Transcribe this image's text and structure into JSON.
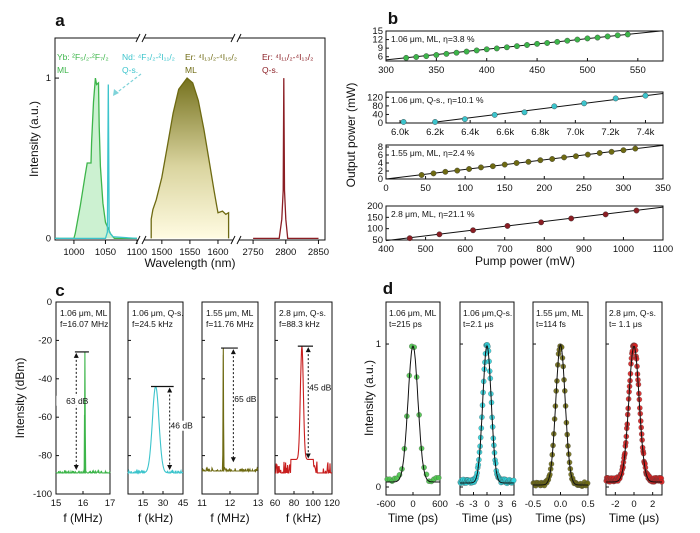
{
  "chart_data": [
    {
      "panel": "a",
      "type": "line",
      "xlabel": "Wavelength (nm)",
      "ylabel": "Intensity (a.u.)",
      "ylim": [
        -0.01,
        1.25
      ],
      "yticks": [
        0,
        1
      ],
      "ytick_labels": [
        "0",
        "1"
      ],
      "segments": [
        {
          "xlim": [
            970,
            1100
          ],
          "xticks": [
            1000,
            1050,
            1100
          ],
          "xtick_labels": [
            "1000",
            "1050",
            "1100"
          ]
        },
        {
          "xlim": [
            1470,
            1625
          ],
          "xticks": [
            1500,
            1550,
            1600
          ],
          "xtick_labels": [
            "1500",
            "1550",
            "1600"
          ]
        },
        {
          "xlim": [
            2730,
            2860
          ],
          "xticks": [
            2750,
            2800,
            2850
          ],
          "xtick_labels": [
            "2750",
            "2800",
            "2850"
          ]
        }
      ],
      "series": [
        {
          "name": "Yb: ²F₅/₂-²F₇/₂",
          "mode": "ML",
          "color": "#3db54a",
          "fill": "#c9f0cf",
          "segment": 0,
          "points": [
            [
              970,
              0
            ],
            [
              1000,
              0
            ],
            [
              1002,
              0.03
            ],
            [
              1010,
              0.2
            ],
            [
              1018,
              0.4
            ],
            [
              1021,
              0.47
            ],
            [
              1027,
              0.47
            ],
            [
              1028,
              0.6
            ],
            [
              1031,
              0.85
            ],
            [
              1034,
              1.0
            ],
            [
              1036,
              0.96
            ],
            [
              1039,
              0.97
            ],
            [
              1040,
              0.7
            ],
            [
              1042,
              0.45
            ],
            [
              1046,
              0.22
            ],
            [
              1050,
              0.1
            ],
            [
              1058,
              0.03
            ],
            [
              1064,
              0
            ],
            [
              1100,
              0
            ]
          ]
        },
        {
          "name": "Nd: ⁴F₃/₂-²I₁₁/₂",
          "mode": "Q-s.",
          "color": "#3cc4cc",
          "fill": "none",
          "segment": 0,
          "points": [
            [
              970,
              0
            ],
            [
              1050,
              0
            ],
            [
              1053,
              0.04
            ],
            [
              1054.5,
              0.96
            ],
            [
              1056,
              0.04
            ],
            [
              1062,
              0.01
            ],
            [
              1100,
              0
            ]
          ]
        },
        {
          "name": "Er: ⁴I₁₃/₂-⁴I₁₅/₂",
          "mode": "ML",
          "color": "#6e6a12",
          "fill": "gradient",
          "segment": 1,
          "points": [
            [
              1481,
              0
            ],
            [
              1481,
              0.12
            ],
            [
              1484,
              0.18
            ],
            [
              1490,
              0.24
            ],
            [
              1500,
              0.38
            ],
            [
              1510,
              0.58
            ],
            [
              1520,
              0.78
            ],
            [
              1530,
              0.93
            ],
            [
              1545,
              1.0
            ],
            [
              1555,
              0.97
            ],
            [
              1565,
              0.86
            ],
            [
              1575,
              0.68
            ],
            [
              1585,
              0.47
            ],
            [
              1593,
              0.3
            ],
            [
              1598,
              0.2
            ],
            [
              1600,
              0.16
            ],
            [
              1608,
              0.17
            ],
            [
              1614,
              0.15
            ],
            [
              1619,
              0.16
            ],
            [
              1619,
              0
            ]
          ]
        },
        {
          "name": "Er: ⁴I₁₁/₂-⁴I₁₃/₂",
          "mode": "Q-s.",
          "color": "#8b1e24",
          "fill": "none",
          "segment": 2,
          "points": [
            [
              2750,
              0
            ],
            [
              2790,
              0
            ],
            [
              2794,
              0.12
            ],
            [
              2796,
              0.3
            ],
            [
              2797,
              1.0
            ],
            [
              2798,
              0.3
            ],
            [
              2800,
              0.12
            ],
            [
              2803,
              0
            ],
            [
              2850,
              0
            ]
          ]
        }
      ]
    },
    {
      "panel": "b",
      "type": "scatter",
      "xlabel": "Pump power (mW)",
      "ylabel": "Output power (mW)",
      "subplots": [
        {
          "label": "1.06 μm, ML, η=3.8 %",
          "color": "#3db54a",
          "xlim": [
            300,
            575
          ],
          "ylim": [
            4.5,
            15
          ],
          "xticks": [
            300,
            350,
            400,
            450,
            500,
            550
          ],
          "xtick_labels": [
            "300",
            "350",
            "400",
            "450",
            "500",
            "550"
          ],
          "yticks": [
            6,
            9,
            12,
            15
          ],
          "ytick_labels": [
            "6",
            "9",
            "12",
            "15"
          ],
          "points": [
            [
              320,
              5.6
            ],
            [
              330,
              5.9
            ],
            [
              340,
              6.2
            ],
            [
              350,
              6.6
            ],
            [
              360,
              7.0
            ],
            [
              370,
              7.4
            ],
            [
              380,
              7.8
            ],
            [
              390,
              8.2
            ],
            [
              400,
              8.6
            ],
            [
              410,
              8.9
            ],
            [
              420,
              9.3
            ],
            [
              430,
              9.7
            ],
            [
              440,
              10.1
            ],
            [
              450,
              10.5
            ],
            [
              460,
              10.8
            ],
            [
              470,
              11.2
            ],
            [
              480,
              11.6
            ],
            [
              490,
              12.0
            ],
            [
              500,
              12.4
            ],
            [
              510,
              12.7
            ],
            [
              520,
              13.1
            ],
            [
              530,
              13.5
            ],
            [
              540,
              13.8
            ]
          ],
          "fit": [
            [
              300,
              4.9
            ],
            [
              575,
              15.1
            ]
          ]
        },
        {
          "label": "1.06 μm, Q-s., η=10.1 %",
          "color": "#3cc4cc",
          "xlim": [
            5920,
            7500
          ],
          "ylim": [
            0,
            145
          ],
          "xticks": [
            6000,
            6200,
            6400,
            6600,
            6800,
            7000,
            7200,
            7400
          ],
          "xtick_labels": [
            "6.0k",
            "6.2k",
            "6.4k",
            "6.6k",
            "6.8k",
            "7.0k",
            "7.2k",
            "7.4k"
          ],
          "yticks": [
            0,
            40,
            80,
            120
          ],
          "ytick_labels": [
            "0",
            "40",
            "80",
            "120"
          ],
          "points": [
            [
              6020,
              5
            ],
            [
              6200,
              5
            ],
            [
              6370,
              18
            ],
            [
              6540,
              38
            ],
            [
              6710,
              50
            ],
            [
              6880,
              78
            ],
            [
              7050,
              92
            ],
            [
              7230,
              115
            ],
            [
              7400,
              128
            ]
          ],
          "fit": [
            [
              6200,
              4
            ],
            [
              7500,
              138
            ]
          ]
        },
        {
          "label": "1.55 μm, ML, η=2.4 %",
          "color": "#6e6a12",
          "xlim": [
            0,
            350
          ],
          "ylim": [
            0,
            8.5
          ],
          "xticks": [
            0,
            50,
            100,
            150,
            200,
            250,
            300,
            350
          ],
          "xtick_labels": [
            "0",
            "50",
            "100",
            "150",
            "200",
            "250",
            "300",
            "350"
          ],
          "yticks": [
            0,
            2,
            4,
            6,
            8
          ],
          "ytick_labels": [
            "0",
            "2",
            "4",
            "6",
            "8"
          ],
          "points": [
            [
              45,
              1.0
            ],
            [
              60,
              1.4
            ],
            [
              75,
              1.8
            ],
            [
              90,
              2.1
            ],
            [
              105,
              2.5
            ],
            [
              120,
              2.9
            ],
            [
              135,
              3.2
            ],
            [
              150,
              3.6
            ],
            [
              165,
              4.0
            ],
            [
              180,
              4.3
            ],
            [
              195,
              4.7
            ],
            [
              210,
              5.0
            ],
            [
              225,
              5.4
            ],
            [
              240,
              5.7
            ],
            [
              255,
              6.1
            ],
            [
              270,
              6.5
            ],
            [
              285,
              6.8
            ],
            [
              300,
              7.2
            ],
            [
              315,
              7.6
            ]
          ],
          "fit": [
            [
              0,
              0
            ],
            [
              350,
              8.4
            ]
          ]
        },
        {
          "label": "2.8 μm, ML, η=21.1 %",
          "color": "#8b1e24",
          "xlim": [
            400,
            1100
          ],
          "ylim": [
            50,
            200
          ],
          "xticks": [
            400,
            500,
            600,
            700,
            800,
            900,
            1000,
            1100
          ],
          "xtick_labels": [
            "400",
            "500",
            "600",
            "700",
            "800",
            "900",
            "1000",
            "1100"
          ],
          "yticks": [
            50,
            100,
            150,
            200
          ],
          "ytick_labels": [
            "50",
            "100",
            "150",
            "200"
          ],
          "points": [
            [
              460,
              58
            ],
            [
              535,
              75
            ],
            [
              620,
              93
            ],
            [
              707,
              112
            ],
            [
              792,
              128
            ],
            [
              868,
              145
            ],
            [
              955,
              163
            ],
            [
              1033,
              180
            ]
          ],
          "fit": [
            [
              400,
              47
            ],
            [
              1100,
              195
            ]
          ]
        }
      ]
    },
    {
      "panel": "c",
      "type": "line",
      "ylabel": "Intensity (dBm)",
      "ylim": [
        -100,
        0
      ],
      "yticks": [
        0,
        -20,
        -40,
        -60,
        -80,
        -100
      ],
      "ytick_labels": [
        "0",
        "-20",
        "-40",
        "-60",
        "-80",
        "-100"
      ],
      "subplots": [
        {
          "label": [
            "1.06 μm, ML",
            "f=16.07 MHz"
          ],
          "color": "#3db54a",
          "xlim": [
            15,
            17
          ],
          "xticks": [
            15,
            16,
            17
          ],
          "xtick_labels": [
            "15",
            "16",
            "17"
          ],
          "xlabel": "f (MHz)",
          "floor": -89,
          "noise": 1.2,
          "peak_x": 16.07,
          "peak_y": -26,
          "peak_width": 0.015,
          "ref_line": [
            15.7,
            16.22
          ],
          "arrow_x": 15.75,
          "arrow_to": -88,
          "snr": "63 dB",
          "snr_y": -53
        },
        {
          "label": [
            "1.06 μm, Q-s.",
            "f=24.5 kHz"
          ],
          "color": "#3cc4cc",
          "xlim": [
            3.75,
            45
          ],
          "xticks": [
            15,
            30,
            45
          ],
          "xtick_labels": [
            "15",
            "30",
            "45"
          ],
          "xlabel": "f (kHz)",
          "floor": -89,
          "noise": 1.2,
          "peak_x": 24.5,
          "peak_y": -44,
          "peak_width": 3.5,
          "ref_line": [
            21,
            38
          ],
          "arrow_x": 35,
          "arrow_to": -88,
          "snr": "46 dB",
          "snr_y": -66
        },
        {
          "label": [
            "1.55 μm, ML",
            "f=11.76 MHz"
          ],
          "color": "#6e6a12",
          "xlim": [
            11,
            13
          ],
          "xticks": [
            11,
            12,
            13
          ],
          "xtick_labels": [
            "11",
            "12",
            "13"
          ],
          "xlabel": "f (MHz)",
          "floor": -88,
          "noise": 1.5,
          "peak_x": 11.76,
          "peak_y": -24,
          "peak_width": 0.012,
          "ref_line": [
            11.68,
            12.28
          ],
          "arrow_x": 12.12,
          "arrow_to": -84,
          "snr": "65 dB",
          "snr_y": -52
        },
        {
          "label": [
            "2.8 μm, Q-s.",
            "f=88.3 kHz"
          ],
          "color": "#c81e1e",
          "xlim": [
            60,
            120
          ],
          "xticks": [
            60,
            80,
            100,
            120
          ],
          "xtick_labels": [
            "60",
            "80",
            "100",
            "120"
          ],
          "xlabel": "f (kHz)",
          "floor": -89,
          "noise": 6,
          "peak_x": 88.3,
          "peak_y": -23,
          "peak_width": 2.2,
          "ref_line": [
            84,
            100
          ],
          "arrow_x": 95,
          "arrow_to": -82,
          "snr": "45 dB",
          "snr_y": -46
        }
      ]
    },
    {
      "panel": "d",
      "type": "scatter",
      "ylabel": "Intensity (a.u.)",
      "ylim": [
        -0.056,
        1.294
      ],
      "yticks": [
        0,
        1
      ],
      "ytick_labels": [
        "0",
        "1"
      ],
      "subplots": [
        {
          "label": [
            "1.06 μm, ML",
            "t=215 ps"
          ],
          "color": "#4cc44c",
          "xlim": [
            -600,
            600
          ],
          "xticks": [
            -600,
            0,
            600
          ],
          "xtick_labels": [
            "-600",
            "0",
            "600"
          ],
          "xlabel": "Time (ps)",
          "fwhm": 260,
          "baseline": 0.05,
          "n_points": 22
        },
        {
          "label": [
            "1.06 μm,Q-s.",
            "t=2.1 μs"
          ],
          "color": "#2ed3dc",
          "xlim": [
            -6,
            6
          ],
          "xticks": [
            -6,
            -3,
            0,
            3,
            6
          ],
          "xtick_labels": [
            "-6",
            "-3",
            "0",
            "3",
            "6"
          ],
          "xlabel": "Time (μs)",
          "fwhm": 2.2,
          "baseline": 0.04,
          "n_points": 90
        },
        {
          "label": [
            "1.55 μm, ML",
            "t=114 fs"
          ],
          "color": "#6e6a12",
          "xlim": [
            -0.5,
            0.5
          ],
          "xticks": [
            -0.5,
            0.0,
            0.5
          ],
          "xtick_labels": [
            "-0.5",
            "0.0",
            "0.5"
          ],
          "xlabel": "Time (ps)",
          "fwhm": 0.2,
          "baseline": 0.02,
          "n_points": 70
        },
        {
          "label": [
            "2.8 μm, Q-s.",
            "t= 1.1 μs"
          ],
          "color": "#d62020",
          "xlim": [
            -3,
            3
          ],
          "xticks": [
            -2,
            0,
            2
          ],
          "xtick_labels": [
            "-2",
            "0",
            "2"
          ],
          "xlabel": "Time (μs)",
          "fwhm": 1.3,
          "baseline": 0.05,
          "n_points": 120
        }
      ]
    }
  ]
}
